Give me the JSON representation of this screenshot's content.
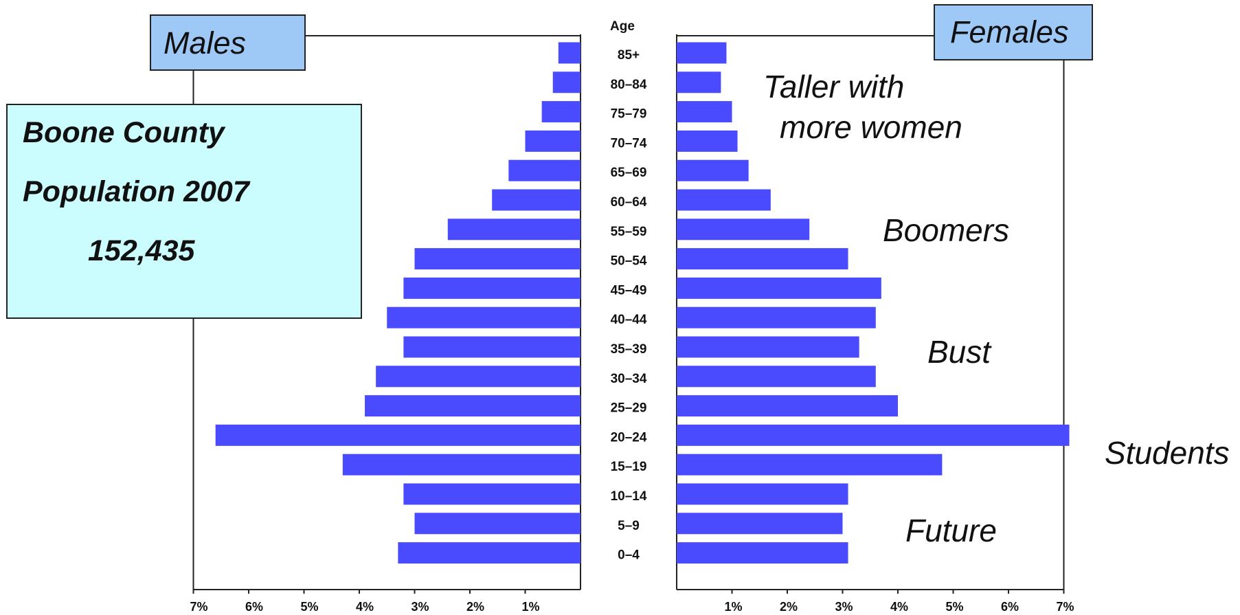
{
  "labels": {
    "males": "Males",
    "females": "Females",
    "age_header": "Age"
  },
  "info": {
    "line1": "Boone County",
    "line2": "Population 2007",
    "line3": "152,435"
  },
  "annotations": {
    "taller_1": "Taller with",
    "taller_2": "more women",
    "boomers": "Boomers",
    "bust": "Bust",
    "students": "Students",
    "future": "Future"
  },
  "colors": {
    "bar": "#4a4aff",
    "label_box": "#9ec8f5",
    "info_box": "#ccfdfe"
  },
  "chart_data": {
    "type": "bar",
    "orientation": "horizontal-back-to-back",
    "categories": [
      "85+",
      "80–84",
      "75–79",
      "70–74",
      "65–69",
      "60–64",
      "55–59",
      "50–54",
      "45–49",
      "40–44",
      "35–39",
      "30–34",
      "25–29",
      "20–24",
      "15–19",
      "10–14",
      "5–9",
      "0–4"
    ],
    "series": [
      {
        "name": "Males",
        "values": [
          0.4,
          0.5,
          0.7,
          1.0,
          1.3,
          1.6,
          2.4,
          3.0,
          3.2,
          3.5,
          3.2,
          3.7,
          3.9,
          6.6,
          4.3,
          3.2,
          3.0,
          3.3
        ]
      },
      {
        "name": "Females",
        "values": [
          0.9,
          0.8,
          1.0,
          1.1,
          1.3,
          1.7,
          2.4,
          3.1,
          3.7,
          3.6,
          3.3,
          3.6,
          4.0,
          7.1,
          4.8,
          3.1,
          3.0,
          3.1
        ]
      }
    ],
    "xticks_left": [
      "7%",
      "6%",
      "5%",
      "4%",
      "3%",
      "2%",
      "1%"
    ],
    "xticks_right": [
      "1%",
      "2%",
      "3%",
      "4%",
      "5%",
      "6%",
      "7%"
    ],
    "xlim": [
      0,
      7
    ],
    "ylabel": "Age",
    "grid": false
  }
}
